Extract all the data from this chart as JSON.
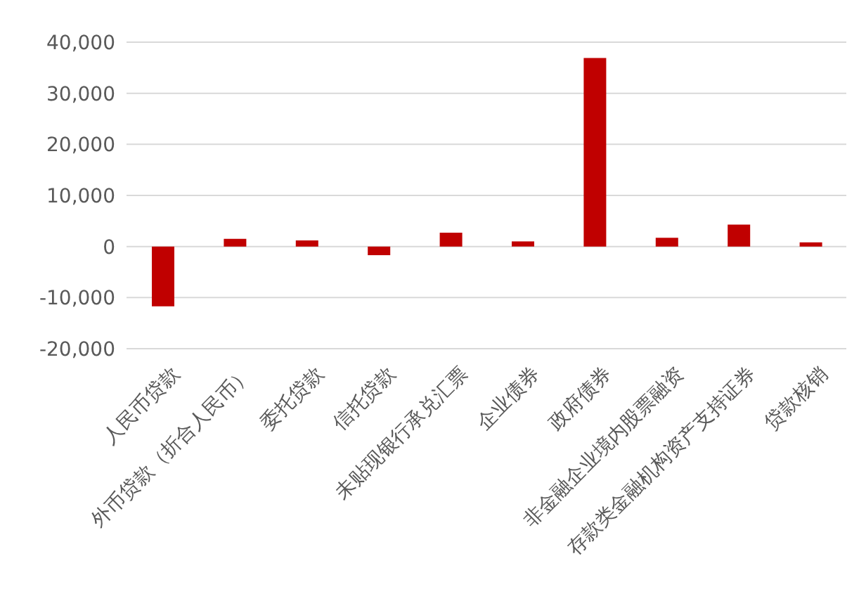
{
  "chart_data": {
    "type": "bar",
    "categories": [
      "人民币贷款",
      "外币贷款（折合人民币）",
      "委托贷款",
      "信托贷款",
      "未贴现银行承兑汇票",
      "企业债券",
      "政府债券",
      "非金融企业境内股票融资",
      "存款类金融机构资产支持证券",
      "贷款核销"
    ],
    "values": [
      -11700,
      1500,
      1200,
      -1700,
      2700,
      1000,
      36900,
      1700,
      4300,
      800
    ],
    "color": "#c00000",
    "ylim": [
      -20000,
      40000
    ],
    "yticks": [
      {
        "value": -20000,
        "label": "-20,000"
      },
      {
        "value": -10000,
        "label": "-10,000"
      },
      0,
      {
        "value": 10000,
        "label": "10,000"
      },
      {
        "value": 20000,
        "label": "20,000"
      },
      {
        "value": 30000,
        "label": "30,000"
      },
      {
        "value": 40000,
        "label": "40,000"
      }
    ],
    "grid": "y"
  }
}
